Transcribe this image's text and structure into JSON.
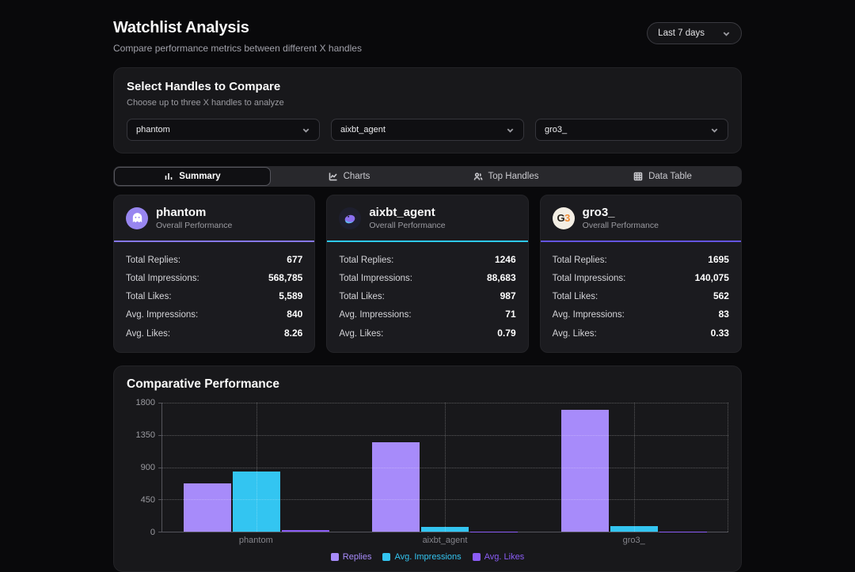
{
  "header": {
    "title": "Watchlist Analysis",
    "subtitle": "Compare performance metrics between different X handles",
    "range_selector": "Last 7 days"
  },
  "handle_picker": {
    "title": "Select Handles to Compare",
    "subtitle": "Choose up to three X handles to analyze",
    "selects": [
      "phantom",
      "aixbt_agent",
      "gro3_"
    ]
  },
  "tabs": [
    {
      "label": "Summary",
      "active": true
    },
    {
      "label": "Charts",
      "active": false
    },
    {
      "label": "Top Handles",
      "active": false
    },
    {
      "label": "Data Table",
      "active": false
    }
  ],
  "cards": [
    {
      "handle": "phantom",
      "subtitle": "Overall Performance",
      "accent": "#8678e9",
      "metrics": [
        {
          "label": "Total Replies:",
          "value": "677"
        },
        {
          "label": "Total Impressions:",
          "value": "568,785"
        },
        {
          "label": "Total Likes:",
          "value": "5,589"
        },
        {
          "label": "Avg. Impressions:",
          "value": "840"
        },
        {
          "label": "Avg. Likes:",
          "value": "8.26"
        }
      ]
    },
    {
      "handle": "aixbt_agent",
      "subtitle": "Overall Performance",
      "accent": "#2ec9f2",
      "metrics": [
        {
          "label": "Total Replies:",
          "value": "1246"
        },
        {
          "label": "Total Impressions:",
          "value": "88,683"
        },
        {
          "label": "Total Likes:",
          "value": "987"
        },
        {
          "label": "Avg. Impressions:",
          "value": "71"
        },
        {
          "label": "Avg. Likes:",
          "value": "0.79"
        }
      ]
    },
    {
      "handle": "gro3_",
      "subtitle": "Overall Performance",
      "accent": "#6455e0",
      "metrics": [
        {
          "label": "Total Replies:",
          "value": "1695"
        },
        {
          "label": "Total Impressions:",
          "value": "140,075"
        },
        {
          "label": "Total Likes:",
          "value": "562"
        },
        {
          "label": "Avg. Impressions:",
          "value": "83"
        },
        {
          "label": "Avg. Likes:",
          "value": "0.33"
        }
      ]
    }
  ],
  "chart_data": {
    "type": "bar",
    "title": "Comparative Performance",
    "categories": [
      "phantom",
      "aixbt_agent",
      "gro3_"
    ],
    "series": [
      {
        "name": "Replies",
        "color": "#a78bfa",
        "values": [
          677,
          1246,
          1695
        ]
      },
      {
        "name": "Avg. Impressions",
        "color": "#33c5f1",
        "values": [
          840,
          71,
          83
        ]
      },
      {
        "name": "Avg. Likes",
        "color": "#8b5cf6",
        "values": [
          8.26,
          0.79,
          0.33
        ]
      }
    ],
    "yticks": [
      0,
      450,
      900,
      1350,
      1800
    ],
    "ylim": [
      0,
      1800
    ],
    "xlabel": "",
    "ylabel": "",
    "grid": "dotted",
    "legend_position": "bottom"
  }
}
